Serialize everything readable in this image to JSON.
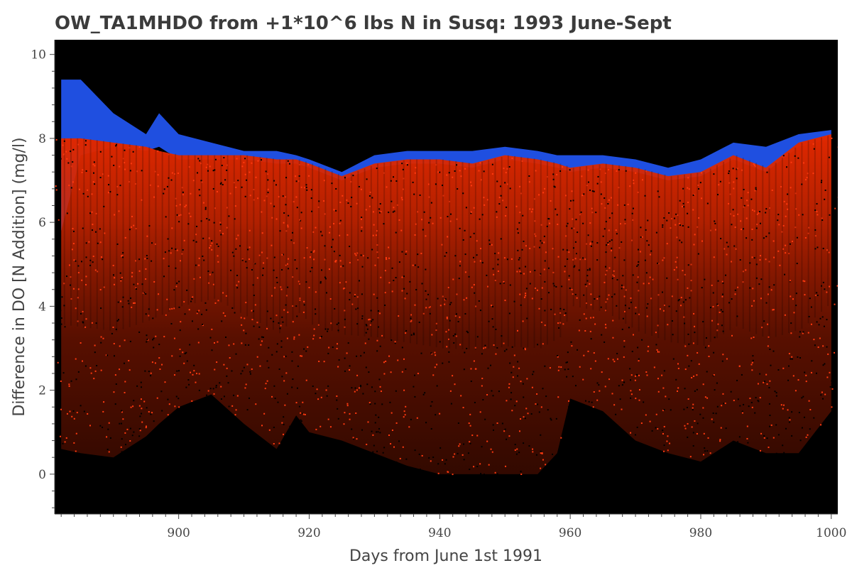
{
  "chart_data": {
    "type": "scatter",
    "title": "OW_TA1MHDO from +1*10^6 lbs N in Susq: 1993 June-Sept",
    "xlabel": "Days from June 1st 1991",
    "ylabel": "Difference in DO [N Addition]  (mg/l)",
    "xlim": [
      881,
      1001
    ],
    "ylim": [
      -0.95,
      10.35
    ],
    "xticks": [
      900,
      920,
      940,
      960,
      980,
      1000
    ],
    "yticks": [
      0,
      2,
      4,
      6,
      8,
      10
    ],
    "background": "#000000",
    "grid": false,
    "x": [
      882,
      885,
      890,
      895,
      897,
      900,
      905,
      910,
      915,
      918,
      920,
      925,
      930,
      935,
      940,
      945,
      950,
      955,
      958,
      960,
      965,
      970,
      975,
      980,
      985,
      990,
      995,
      1000
    ],
    "series": [
      {
        "color": "#1f4fe0",
        "upper": [
          9.4,
          9.4,
          8.6,
          8.1,
          8.6,
          8.1,
          7.9,
          7.7,
          7.7,
          7.6,
          7.5,
          7.2,
          7.6,
          7.7,
          7.7,
          7.7,
          7.8,
          7.7,
          7.6,
          7.6,
          7.6,
          7.5,
          7.3,
          7.5,
          7.9,
          7.8,
          8.1,
          8.2
        ],
        "lower": [
          5.8,
          7.6,
          7.8,
          7.7,
          7.8,
          7.5,
          7.5,
          7.5,
          7.4,
          7.4,
          7.3,
          7.0,
          7.3,
          7.4,
          7.4,
          7.3,
          7.5,
          7.4,
          7.3,
          7.2,
          7.3,
          7.2,
          7.0,
          7.1,
          7.5,
          7.2,
          7.8,
          8.0
        ]
      },
      {
        "color": "#e02800",
        "upper": [
          8.0,
          8.0,
          7.9,
          7.8,
          7.7,
          7.6,
          7.6,
          7.6,
          7.5,
          7.5,
          7.4,
          7.1,
          7.4,
          7.5,
          7.5,
          7.4,
          7.6,
          7.5,
          7.4,
          7.3,
          7.4,
          7.3,
          7.1,
          7.2,
          7.6,
          7.3,
          7.9,
          8.1
        ],
        "lower": [
          0.6,
          0.5,
          0.4,
          0.9,
          1.2,
          1.6,
          1.9,
          1.2,
          0.6,
          1.4,
          1.0,
          0.8,
          0.5,
          0.2,
          0.0,
          0.0,
          0.0,
          0.0,
          0.5,
          1.8,
          1.5,
          0.8,
          0.5,
          0.3,
          0.8,
          0.5,
          0.5,
          1.5
        ]
      }
    ]
  }
}
